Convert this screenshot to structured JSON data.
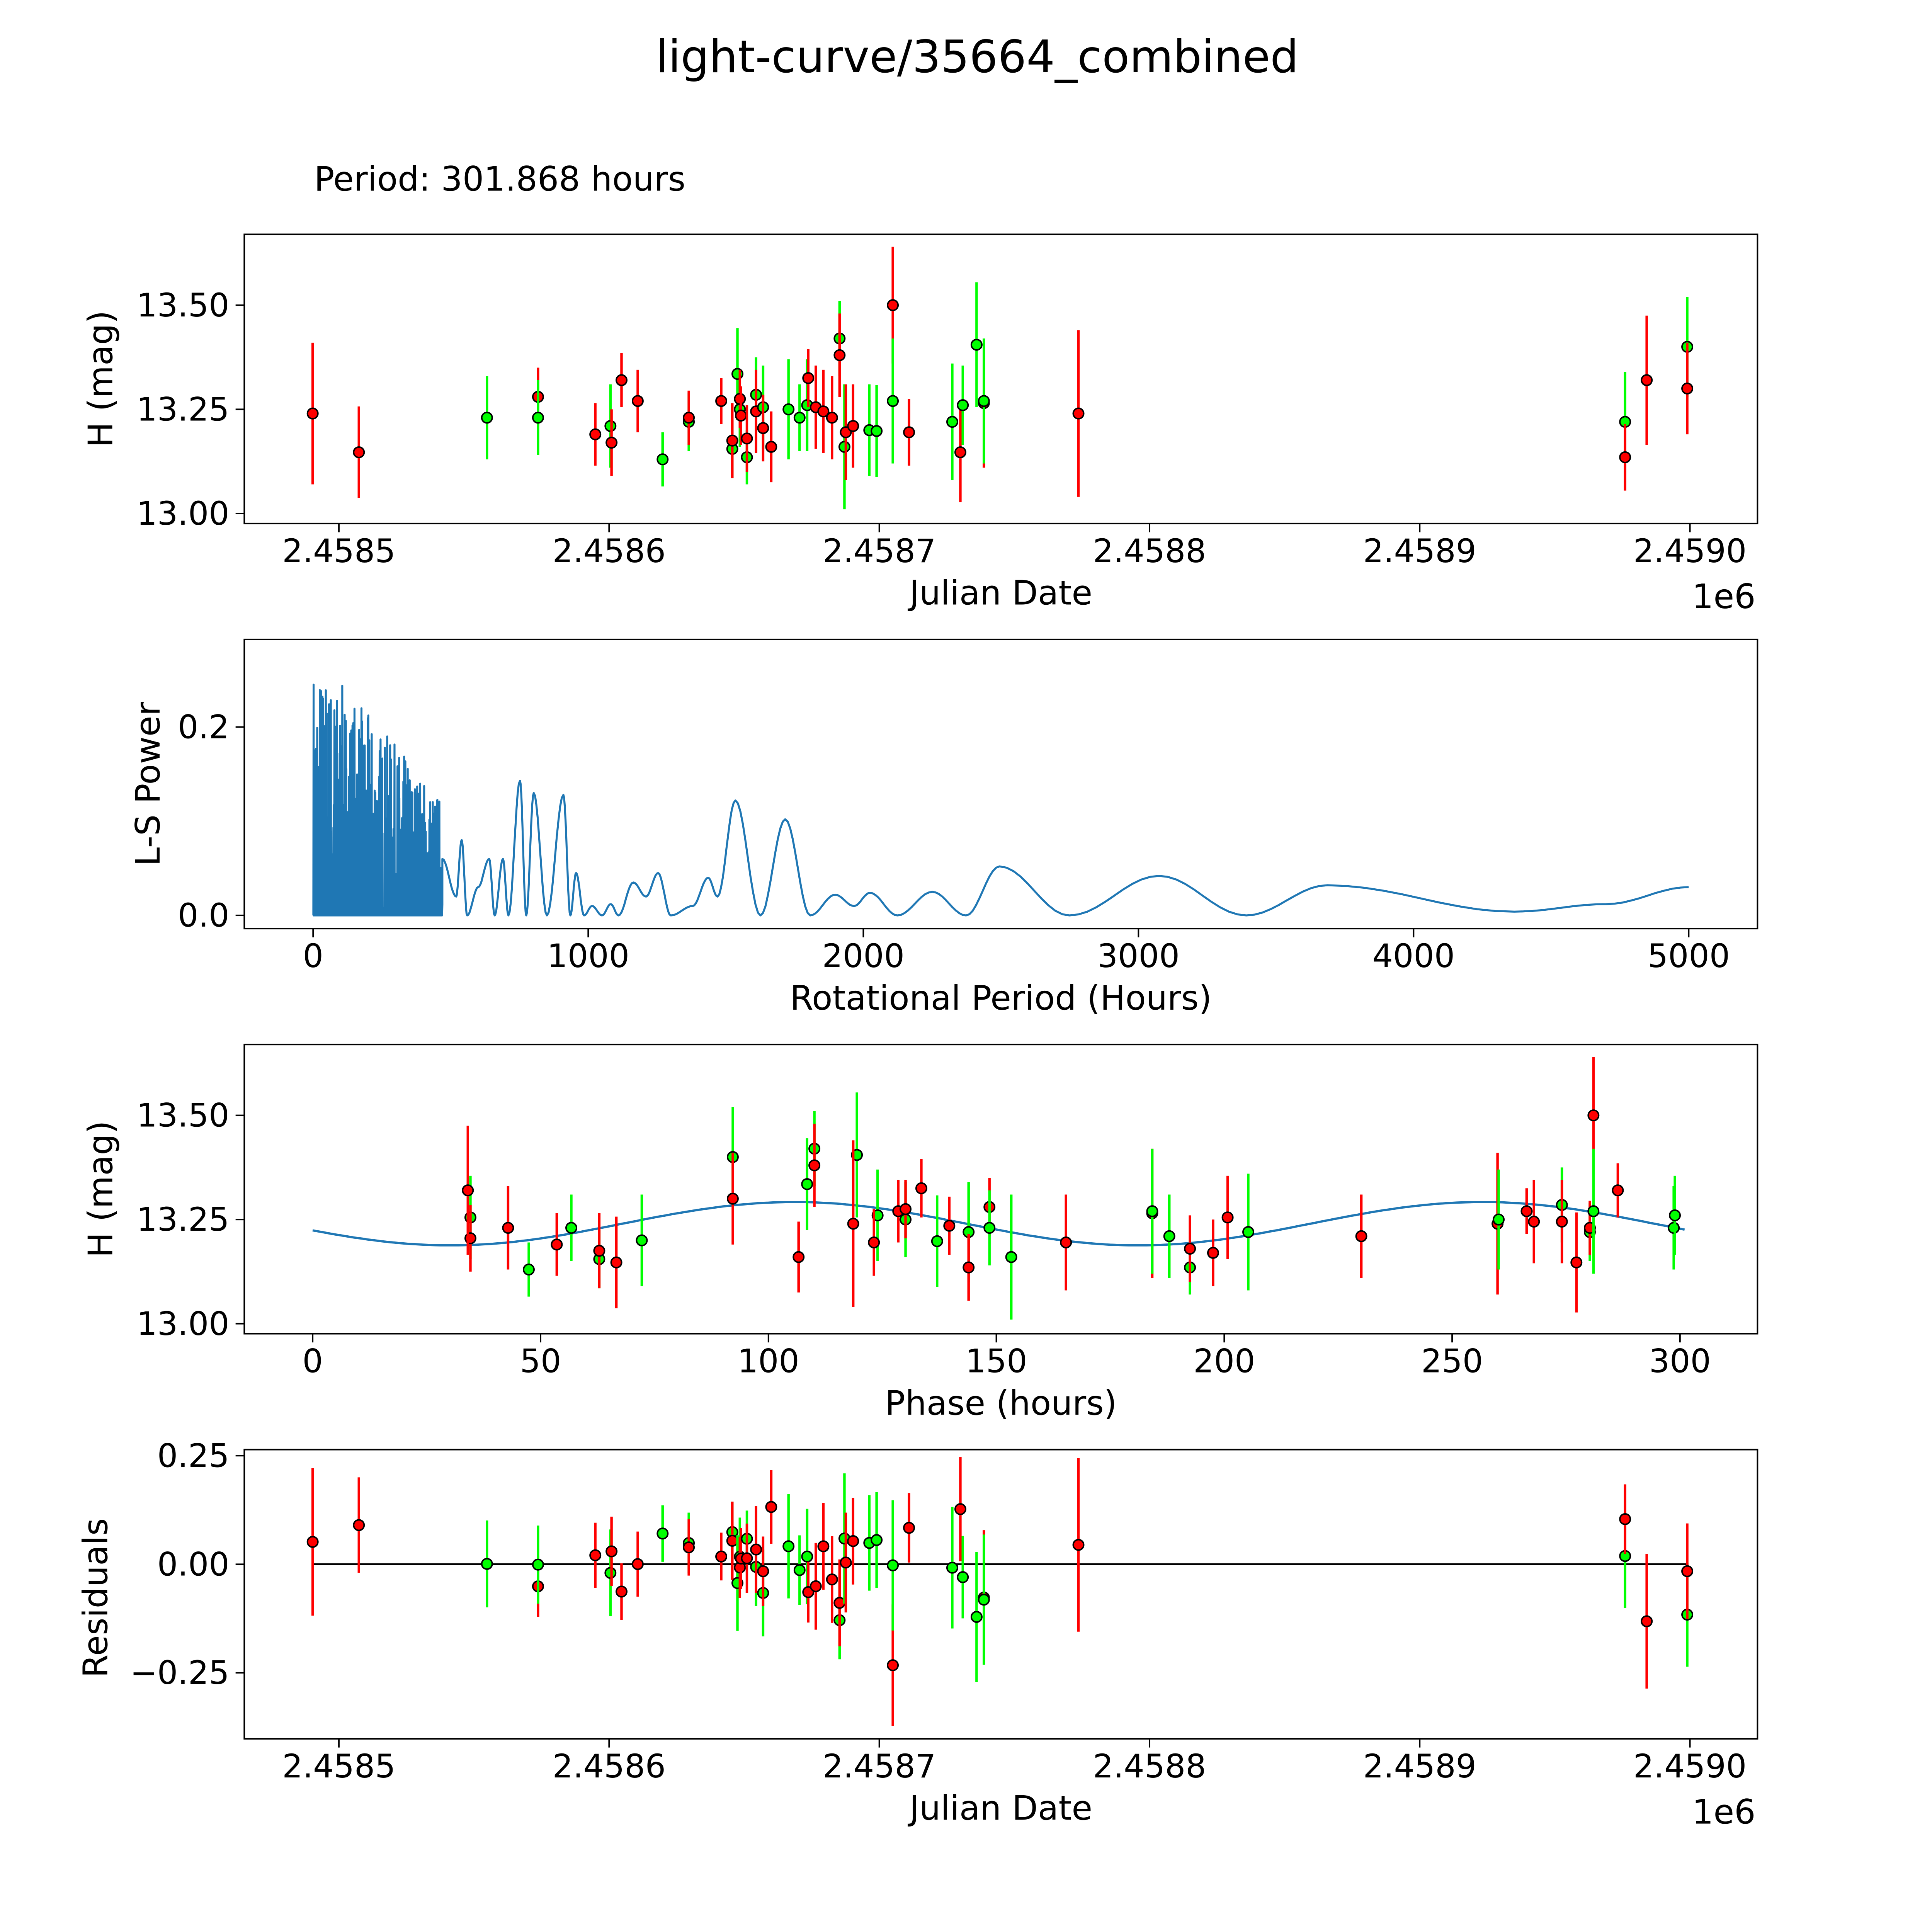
{
  "title": "light-curve/35664_combined",
  "period_text": "Period: 301.868 hours",
  "colors": {
    "g": "#00ff00",
    "r": "#ff0000",
    "curve": "#1f77b4",
    "marker_edge": "#000000"
  },
  "chart_data": [
    {
      "id": "light_curve",
      "type": "scatter",
      "xlabel": "Julian Date",
      "x_offset_label": "1e6",
      "ylabel": "H (mag)",
      "xticks": [
        2458500,
        2458600,
        2458700,
        2458800,
        2458900,
        2459000
      ],
      "xtick_labels": [
        "2.4585",
        "2.4586",
        "2.4587",
        "2.4588",
        "2.4589",
        "2.4590"
      ],
      "yticks": [
        13.0,
        13.25,
        13.5
      ],
      "ytick_labels": [
        "13.00",
        "13.25",
        "13.50"
      ],
      "xlim": [
        2458465,
        2459025
      ],
      "ylim": [
        12.976,
        13.67
      ],
      "points": [
        {
          "jd": 2458490.3,
          "mag": 13.24,
          "err": 0.17,
          "band": "r"
        },
        {
          "jd": 2458507.4,
          "mag": 13.147,
          "err": 0.11,
          "band": "r"
        },
        {
          "jd": 2458554.8,
          "mag": 13.23,
          "err": 0.1,
          "band": "g"
        },
        {
          "jd": 2458573.7,
          "mag": 13.28,
          "err": 0.07,
          "band": "r"
        },
        {
          "jd": 2458573.7,
          "mag": 13.23,
          "err": 0.09,
          "band": "g"
        },
        {
          "jd": 2458594.9,
          "mag": 13.19,
          "err": 0.075,
          "band": "r"
        },
        {
          "jd": 2458600.5,
          "mag": 13.21,
          "err": 0.1,
          "band": "g"
        },
        {
          "jd": 2458600.9,
          "mag": 13.17,
          "err": 0.08,
          "band": "r"
        },
        {
          "jd": 2458604.6,
          "mag": 13.32,
          "err": 0.065,
          "band": "r"
        },
        {
          "jd": 2458610.6,
          "mag": 13.27,
          "err": 0.075,
          "band": "r"
        },
        {
          "jd": 2458619.8,
          "mag": 13.13,
          "err": 0.065,
          "band": "g"
        },
        {
          "jd": 2458629.5,
          "mag": 13.22,
          "err": 0.07,
          "band": "g"
        },
        {
          "jd": 2458629.5,
          "mag": 13.23,
          "err": 0.065,
          "band": "r"
        },
        {
          "jd": 2458641.5,
          "mag": 13.27,
          "err": 0.055,
          "band": "r"
        },
        {
          "jd": 2458645.6,
          "mag": 13.155,
          "err": 0.07,
          "band": "g"
        },
        {
          "jd": 2458645.6,
          "mag": 13.175,
          "err": 0.09,
          "band": "r"
        },
        {
          "jd": 2458647.5,
          "mag": 13.335,
          "err": 0.11,
          "band": "g"
        },
        {
          "jd": 2458648.4,
          "mag": 13.25,
          "err": 0.09,
          "band": "g"
        },
        {
          "jd": 2458648.4,
          "mag": 13.275,
          "err": 0.07,
          "band": "r"
        },
        {
          "jd": 2458648.8,
          "mag": 13.235,
          "err": 0.07,
          "band": "r"
        },
        {
          "jd": 2458651.0,
          "mag": 13.135,
          "err": 0.065,
          "band": "g"
        },
        {
          "jd": 2458651.0,
          "mag": 13.18,
          "err": 0.08,
          "band": "r"
        },
        {
          "jd": 2458654.4,
          "mag": 13.285,
          "err": 0.09,
          "band": "g"
        },
        {
          "jd": 2458654.4,
          "mag": 13.245,
          "err": 0.1,
          "band": "r"
        },
        {
          "jd": 2458657.0,
          "mag": 13.255,
          "err": 0.1,
          "band": "g"
        },
        {
          "jd": 2458657.0,
          "mag": 13.205,
          "err": 0.08,
          "band": "r"
        },
        {
          "jd": 2458660.0,
          "mag": 13.16,
          "err": 0.085,
          "band": "r"
        },
        {
          "jd": 2458666.4,
          "mag": 13.25,
          "err": 0.12,
          "band": "g"
        },
        {
          "jd": 2458670.5,
          "mag": 13.23,
          "err": 0.08,
          "band": "g"
        },
        {
          "jd": 2458673.3,
          "mag": 13.26,
          "err": 0.11,
          "band": "g"
        },
        {
          "jd": 2458673.7,
          "mag": 13.325,
          "err": 0.07,
          "band": "r"
        },
        {
          "jd": 2458676.5,
          "mag": 13.255,
          "err": 0.1,
          "band": "r"
        },
        {
          "jd": 2458679.3,
          "mag": 13.245,
          "err": 0.1,
          "band": "r"
        },
        {
          "jd": 2458682.5,
          "mag": 13.23,
          "err": 0.1,
          "band": "r"
        },
        {
          "jd": 2458685.3,
          "mag": 13.42,
          "err": 0.09,
          "band": "g"
        },
        {
          "jd": 2458685.3,
          "mag": 13.38,
          "err": 0.1,
          "band": "r"
        },
        {
          "jd": 2458687.1,
          "mag": 13.16,
          "err": 0.15,
          "band": "g"
        },
        {
          "jd": 2458687.6,
          "mag": 13.195,
          "err": 0.115,
          "band": "r"
        },
        {
          "jd": 2458690.3,
          "mag": 13.21,
          "err": 0.1,
          "band": "r"
        },
        {
          "jd": 2458696.3,
          "mag": 13.2,
          "err": 0.11,
          "band": "g"
        },
        {
          "jd": 2458699.0,
          "mag": 13.198,
          "err": 0.11,
          "band": "g"
        },
        {
          "jd": 2458705.0,
          "mag": 13.5,
          "err": 0.14,
          "band": "r"
        },
        {
          "jd": 2458705.0,
          "mag": 13.27,
          "err": 0.15,
          "band": "g"
        },
        {
          "jd": 2458711.0,
          "mag": 13.195,
          "err": 0.08,
          "band": "r"
        },
        {
          "jd": 2458727.0,
          "mag": 13.22,
          "err": 0.14,
          "band": "g"
        },
        {
          "jd": 2458730.0,
          "mag": 13.147,
          "err": 0.12,
          "band": "r"
        },
        {
          "jd": 2458730.9,
          "mag": 13.26,
          "err": 0.095,
          "band": "g"
        },
        {
          "jd": 2458736.0,
          "mag": 13.405,
          "err": 0.15,
          "band": "g"
        },
        {
          "jd": 2458738.7,
          "mag": 13.265,
          "err": 0.155,
          "band": "r"
        },
        {
          "jd": 2458738.7,
          "mag": 13.27,
          "err": 0.15,
          "band": "g"
        },
        {
          "jd": 2458773.7,
          "mag": 13.24,
          "err": 0.2,
          "band": "r"
        },
        {
          "jd": 2458976.0,
          "mag": 13.22,
          "err": 0.12,
          "band": "g"
        },
        {
          "jd": 2458976.0,
          "mag": 13.135,
          "err": 0.08,
          "band": "r"
        },
        {
          "jd": 2458984.0,
          "mag": 13.32,
          "err": 0.155,
          "band": "r"
        },
        {
          "jd": 2458999.0,
          "mag": 13.4,
          "err": 0.12,
          "band": "g"
        },
        {
          "jd": 2458999.0,
          "mag": 13.3,
          "err": 0.11,
          "band": "r"
        }
      ]
    },
    {
      "id": "periodogram",
      "type": "line",
      "xlabel": "Rotational Period (Hours)",
      "ylabel": "L-S Power",
      "xticks": [
        0,
        1000,
        2000,
        3000,
        4000,
        5000
      ],
      "xtick_labels": [
        "0",
        "1000",
        "2000",
        "3000",
        "4000",
        "5000"
      ],
      "yticks": [
        0.0,
        0.2
      ],
      "ytick_labels": [
        "0.0",
        "0.2"
      ],
      "xlim": [
        -250,
        5250
      ],
      "ylim": [
        -0.014,
        0.293
      ],
      "noisy_region_hours": [
        0,
        470
      ],
      "noisy_max_power": 0.28,
      "control_points": [
        [
          470,
          0.06
        ],
        [
          520,
          0.02
        ],
        [
          540,
          0.08
        ],
        [
          560,
          0.0
        ],
        [
          600,
          0.03
        ],
        [
          640,
          0.06
        ],
        [
          660,
          0.0
        ],
        [
          690,
          0.06
        ],
        [
          710,
          0.0
        ],
        [
          752,
          0.143
        ],
        [
          775,
          0.0
        ],
        [
          802,
          0.13
        ],
        [
          850,
          0.0
        ],
        [
          910,
          0.128
        ],
        [
          935,
          0.0
        ],
        [
          956,
          0.045
        ],
        [
          985,
          0.0
        ],
        [
          1014,
          0.01
        ],
        [
          1050,
          0.0
        ],
        [
          1082,
          0.012
        ],
        [
          1110,
          0.0
        ],
        [
          1164,
          0.035
        ],
        [
          1210,
          0.02
        ],
        [
          1254,
          0.045
        ],
        [
          1300,
          0.0
        ],
        [
          1380,
          0.01
        ],
        [
          1436,
          0.04
        ],
        [
          1470,
          0.02
        ],
        [
          1535,
          0.122
        ],
        [
          1626,
          0.0
        ],
        [
          1716,
          0.102
        ],
        [
          1807,
          0.0
        ],
        [
          1898,
          0.022
        ],
        [
          1966,
          0.01
        ],
        [
          2024,
          0.024
        ],
        [
          2124,
          0.0
        ],
        [
          2251,
          0.025
        ],
        [
          2373,
          0.0
        ],
        [
          2495,
          0.052
        ],
        [
          2749,
          0.0
        ],
        [
          3075,
          0.042
        ],
        [
          3392,
          0.0
        ],
        [
          3687,
          0.032
        ],
        [
          4366,
          0.004
        ],
        [
          4700,
          0.012
        ],
        [
          5000,
          0.03
        ]
      ]
    },
    {
      "id": "phased",
      "type": "scatter",
      "xlabel": "Phase (hours)",
      "ylabel": "H (mag)",
      "period_hours": 301.868,
      "phase_zero_jd": 2458492.046,
      "model": {
        "mean": 13.24,
        "amplitude": 0.052,
        "harmonic_period_hours": 150.934,
        "peak_phase_hours": 105.7
      },
      "xticks": [
        0,
        50,
        100,
        150,
        200,
        250,
        300
      ],
      "xtick_labels": [
        "0",
        "50",
        "100",
        "150",
        "200",
        "250",
        "300"
      ],
      "yticks": [
        13.0,
        13.25,
        13.5
      ],
      "ytick_labels": [
        "13.00",
        "13.25",
        "13.50"
      ],
      "xlim": [
        -15,
        317
      ],
      "ylim": [
        12.976,
        13.67
      ]
    },
    {
      "id": "residuals",
      "type": "scatter",
      "xlabel": "Julian Date",
      "x_offset_label": "1e6",
      "ylabel": "Residuals",
      "xticks": [
        2458500,
        2458600,
        2458700,
        2458800,
        2458900,
        2459000
      ],
      "xtick_labels": [
        "2.4585",
        "2.4586",
        "2.4587",
        "2.4588",
        "2.4589",
        "2.4590"
      ],
      "yticks": [
        -0.25,
        0.0,
        0.25
      ],
      "ytick_labels": [
        "−0.25",
        "0.00",
        "0.25"
      ],
      "ylim": [
        -0.402,
        0.264
      ]
    }
  ]
}
